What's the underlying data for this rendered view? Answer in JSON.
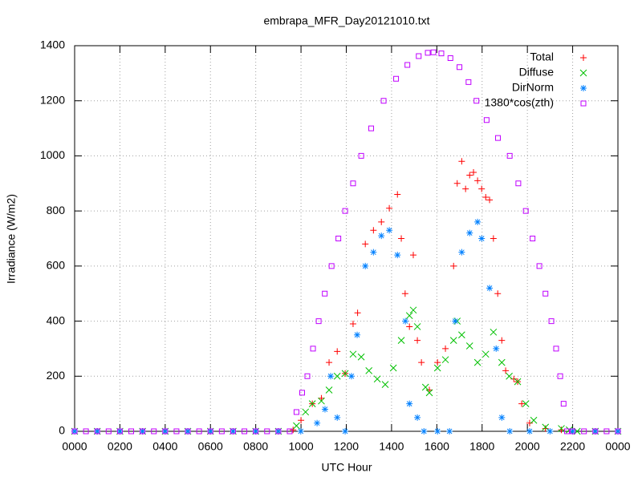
{
  "chart_data": {
    "type": "scatter",
    "title": "embrapa_MFR_Day20121010.txt",
    "x_label": "UTC Hour",
    "y_label": "Irradiance (W/m2)",
    "xlim": [
      0,
      24
    ],
    "xticks": [
      {
        "value": 0,
        "label": "0000"
      },
      {
        "value": 2,
        "label": "0200"
      },
      {
        "value": 4,
        "label": "0400"
      },
      {
        "value": 6,
        "label": "0600"
      },
      {
        "value": 8,
        "label": "0800"
      },
      {
        "value": 10,
        "label": "1000"
      },
      {
        "value": 12,
        "label": "1200"
      },
      {
        "value": 14,
        "label": "1400"
      },
      {
        "value": 16,
        "label": "1600"
      },
      {
        "value": 18,
        "label": "1800"
      },
      {
        "value": 20,
        "label": "2000"
      },
      {
        "value": 22,
        "label": "2200"
      },
      {
        "value": 24,
        "label": "0000"
      }
    ],
    "ylim": [
      0,
      1400
    ],
    "yticks": [
      0,
      200,
      400,
      600,
      800,
      1000,
      1200,
      1400
    ],
    "grid": true,
    "legend": "top right",
    "series": [
      {
        "name": "Total",
        "color": "#ff0000",
        "marker": "plus",
        "x": [
          0,
          1,
          2,
          3,
          4,
          5,
          6,
          7,
          8,
          9,
          9.65,
          10.0,
          10.5,
          10.9,
          11.24,
          11.6,
          11.95,
          12.3,
          12.5,
          12.84,
          13.2,
          13.55,
          13.9,
          14.26,
          14.43,
          14.6,
          14.79,
          14.96,
          15.14,
          15.32,
          15.67,
          16.03,
          16.38,
          16.74,
          16.9,
          17.1,
          17.27,
          17.45,
          17.62,
          17.8,
          17.98,
          18.16,
          18.33,
          18.5,
          18.69,
          18.87,
          19.04,
          19.4,
          19.57,
          19.75,
          20.1,
          20.8,
          21.5,
          22,
          23,
          24
        ],
        "values": [
          0,
          0,
          0,
          0,
          0,
          0,
          0,
          0,
          0,
          0,
          5,
          40,
          100,
          120,
          250,
          290,
          210,
          390,
          430,
          680,
          730,
          760,
          810,
          860,
          700,
          500,
          380,
          640,
          330,
          250,
          150,
          250,
          300,
          600,
          900,
          980,
          880,
          930,
          940,
          910,
          880,
          850,
          840,
          700,
          500,
          330,
          220,
          190,
          180,
          100,
          30,
          10,
          5,
          0,
          0,
          0
        ]
      },
      {
        "name": "Diffuse",
        "color": "#00c000",
        "marker": "cross",
        "x": [
          0,
          1,
          2,
          3,
          4,
          5,
          6,
          7,
          8,
          9,
          9.8,
          10.2,
          10.5,
          10.9,
          11.24,
          11.6,
          11.95,
          12.3,
          12.66,
          13.0,
          13.37,
          13.72,
          14.08,
          14.43,
          14.79,
          14.96,
          15.14,
          15.5,
          15.67,
          16.03,
          16.38,
          16.74,
          16.9,
          17.1,
          17.45,
          17.8,
          18.16,
          18.5,
          18.87,
          19.2,
          19.57,
          19.93,
          20.28,
          20.8,
          21.5,
          21.85,
          22.2,
          23,
          24
        ],
        "values": [
          0,
          0,
          0,
          0,
          0,
          0,
          0,
          0,
          0,
          0,
          20,
          70,
          100,
          110,
          150,
          200,
          210,
          280,
          270,
          220,
          190,
          170,
          230,
          330,
          420,
          440,
          380,
          160,
          140,
          230,
          260,
          330,
          400,
          350,
          310,
          250,
          280,
          360,
          250,
          200,
          180,
          100,
          40,
          15,
          10,
          5,
          0,
          0,
          0
        ]
      },
      {
        "name": "DirNorm",
        "color": "#0080ff",
        "marker": "star",
        "x": [
          0,
          1,
          2,
          3,
          4,
          5,
          6,
          7,
          8,
          9,
          9.99,
          10.71,
          11.06,
          11.31,
          11.6,
          11.95,
          12.23,
          12.48,
          12.84,
          13.2,
          13.55,
          13.9,
          14.26,
          14.61,
          14.79,
          15.14,
          15.43,
          16.03,
          16.56,
          16.81,
          17.1,
          17.45,
          17.8,
          17.98,
          18.33,
          18.62,
          18.87,
          19.22,
          20.1,
          21,
          22,
          23,
          24
        ],
        "values": [
          0,
          0,
          0,
          0,
          0,
          0,
          0,
          0,
          0,
          0,
          0,
          30,
          80,
          200,
          50,
          0,
          200,
          350,
          600,
          650,
          710,
          730,
          640,
          400,
          100,
          50,
          0,
          0,
          0,
          400,
          650,
          720,
          760,
          700,
          520,
          300,
          50,
          0,
          0,
          0,
          0,
          0,
          0
        ]
      },
      {
        "name": "1380*cos(zth)",
        "color": "#c000ff",
        "marker": "square",
        "x": [
          0,
          0.5,
          1,
          1.5,
          2,
          2.5,
          3,
          3.5,
          4,
          4.5,
          5,
          5.5,
          6,
          6.5,
          7,
          7.5,
          8,
          8.5,
          9,
          9.5,
          9.8,
          10.05,
          10.28,
          10.53,
          10.78,
          11.05,
          11.35,
          11.65,
          11.95,
          12.3,
          12.66,
          13.1,
          13.65,
          14.2,
          14.7,
          15.2,
          15.6,
          15.85,
          16.2,
          16.6,
          17.0,
          17.4,
          17.75,
          18.2,
          18.7,
          19.22,
          19.6,
          19.93,
          20.23,
          20.53,
          20.8,
          21.06,
          21.27,
          21.45,
          21.6,
          21.75,
          22,
          22.5,
          23,
          23.5,
          24
        ],
        "values": [
          0,
          0,
          0,
          0,
          0,
          0,
          0,
          0,
          0,
          0,
          0,
          0,
          0,
          0,
          0,
          0,
          0,
          0,
          0,
          0,
          70,
          140,
          200,
          300,
          400,
          500,
          600,
          700,
          800,
          900,
          1000,
          1100,
          1200,
          1280,
          1330,
          1362,
          1374,
          1376,
          1372,
          1355,
          1322,
          1268,
          1200,
          1130,
          1065,
          1000,
          900,
          800,
          700,
          600,
          500,
          400,
          300,
          200,
          100,
          0,
          0,
          0,
          0,
          0,
          0
        ]
      }
    ]
  }
}
